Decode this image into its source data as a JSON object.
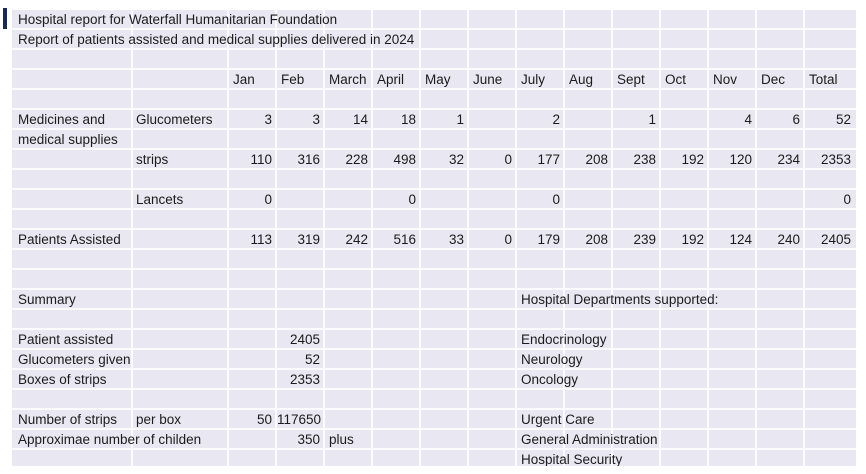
{
  "report": {
    "title_line1": "Hospital report for Waterfall Humanitarian Foundation",
    "title_line2": "Report of patients assisted and medical supplies delivered in 2024"
  },
  "table": {
    "month_headers": [
      "Jan",
      "Feb",
      "March",
      "April",
      "May",
      "June",
      "July",
      "Aug",
      "Sept",
      "Oct",
      "Nov",
      "Dec",
      "Total"
    ],
    "group_label_line1": "Medicines and",
    "group_label_line2": "medical supplies",
    "rows": [
      {
        "item": "Glucometers",
        "values": [
          "3",
          "3",
          "14",
          "18",
          "1",
          "",
          "2",
          "",
          "1",
          "",
          "4",
          "6",
          "52"
        ]
      },
      {
        "item": "strips",
        "values": [
          "110",
          "316",
          "228",
          "498",
          "32",
          "0",
          "177",
          "208",
          "238",
          "192",
          "120",
          "234",
          "2353"
        ]
      },
      {
        "item": "Lancets",
        "values": [
          "0",
          "",
          "",
          "0",
          "",
          "",
          "0",
          "",
          "",
          "",
          "",
          "",
          "0"
        ]
      }
    ],
    "patients_row": {
      "label": "Patients Assisted",
      "values": [
        "113",
        "319",
        "242",
        "516",
        "33",
        "0",
        "179",
        "208",
        "239",
        "192",
        "124",
        "240",
        "2405"
      ]
    }
  },
  "summary": {
    "heading": "Summary",
    "items": [
      {
        "label": "Patient assisted",
        "value": "2405"
      },
      {
        "label": "Glucometers given",
        "value": "52"
      },
      {
        "label": "Boxes of strips",
        "value": "2353"
      }
    ],
    "strips_line": {
      "label": "Number of strips",
      "label2": "per box",
      "per_box": "50",
      "total": "117650"
    },
    "children_line": {
      "label": "Approximae number of childen",
      "value": "350",
      "suffix": "plus"
    }
  },
  "departments": {
    "heading": "Hospital Departments supported:",
    "group1": [
      "Endocrinology",
      "Neurology",
      "Oncology"
    ],
    "group2": [
      "Urgent Care",
      "General Administration",
      "Hospital Security"
    ]
  },
  "colors": {
    "cell_fill": "#e9e8f2",
    "gridline": "#fbfbfd",
    "text": "#1b1b1b",
    "accent_mark": "#1c2b49"
  }
}
